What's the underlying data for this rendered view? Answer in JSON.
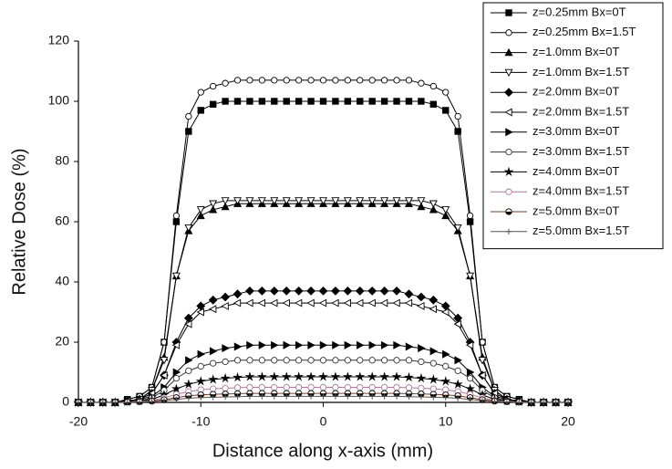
{
  "chart_data": {
    "type": "line",
    "x_label": "Distance along x-axis (mm)",
    "y_label": "Relative Dose (%)",
    "xlim": [
      -20,
      20
    ],
    "xticks": [
      -20,
      -10,
      0,
      10,
      20
    ],
    "ylim": [
      0,
      120
    ],
    "yticks": [
      0,
      20,
      40,
      60,
      80,
      100,
      120
    ],
    "legend": "top-right",
    "x": [
      -20,
      -19,
      -18,
      -17,
      -16,
      -15,
      -14,
      -13,
      -12,
      -11,
      -10,
      -9,
      -8,
      -7,
      -6,
      -5,
      -4,
      -3,
      -2,
      -1,
      0,
      1,
      2,
      3,
      4,
      5,
      6,
      7,
      8,
      9,
      10,
      11,
      12,
      13,
      14,
      15,
      16,
      17,
      18,
      19,
      20
    ],
    "series": [
      {
        "name": "z=0.25mm Bx=0T",
        "color": "#000000",
        "marker": "square",
        "values": [
          0,
          0,
          0,
          0,
          1,
          2,
          5,
          20,
          60,
          90,
          97,
          99,
          100,
          100,
          100,
          100,
          100,
          100,
          100,
          100,
          100,
          100,
          100,
          100,
          100,
          100,
          100,
          100,
          100,
          99,
          97,
          90,
          60,
          20,
          5,
          2,
          1,
          0,
          0,
          0,
          0
        ]
      },
      {
        "name": "z=0.25mm Bx=1.5T",
        "color": "#000000",
        "marker": "circle-open",
        "values": [
          0,
          0,
          0,
          0,
          1,
          2,
          5,
          20,
          62,
          95,
          103,
          105,
          106,
          107,
          107,
          107,
          107,
          107,
          107,
          107,
          107,
          107,
          107,
          107,
          107,
          107,
          107,
          107,
          106,
          105,
          103,
          95,
          62,
          20,
          5,
          2,
          1,
          0,
          0,
          0,
          0
        ]
      },
      {
        "name": "z=1.0mm Bx=0T",
        "color": "#000000",
        "marker": "triangle-up",
        "values": [
          0,
          0,
          0,
          0,
          0.5,
          1,
          4,
          15,
          42,
          57,
          62,
          64,
          65,
          66,
          66,
          66,
          66,
          66,
          66,
          66,
          66,
          66,
          66,
          66,
          66,
          66,
          66,
          66,
          65,
          64,
          62,
          57,
          42,
          15,
          4,
          1,
          0.5,
          0,
          0,
          0,
          0
        ]
      },
      {
        "name": "z=1.0mm Bx=1.5T",
        "color": "#000000",
        "marker": "triangle-down-open",
        "values": [
          0,
          0,
          0,
          0,
          0.5,
          1,
          4,
          14,
          42,
          58,
          64,
          66,
          67,
          67,
          67,
          67,
          67,
          67,
          67,
          67,
          67,
          67,
          67,
          67,
          67,
          67,
          67,
          67,
          67,
          66,
          64,
          58,
          42,
          14,
          4,
          1,
          0.5,
          0,
          0,
          0,
          0
        ]
      },
      {
        "name": "z=2.0mm Bx=0T",
        "color": "#000000",
        "marker": "diamond",
        "values": [
          0,
          0,
          0,
          0,
          0.5,
          1,
          3,
          9,
          20,
          28,
          32,
          34,
          35,
          36,
          37,
          37,
          37,
          37,
          37,
          37,
          37,
          37,
          37,
          37,
          37,
          37,
          37,
          36,
          35,
          34,
          32,
          28,
          20,
          9,
          3,
          1,
          0.5,
          0,
          0,
          0,
          0
        ]
      },
      {
        "name": "z=2.0mm Bx=1.5T",
        "color": "#000000",
        "marker": "triangle-left-open",
        "values": [
          0,
          0,
          0,
          0,
          0.5,
          1,
          3,
          9,
          19,
          26,
          30,
          31,
          32,
          33,
          33,
          33,
          33,
          33,
          33,
          33,
          33,
          33,
          33,
          33,
          33,
          33,
          33,
          33,
          32,
          31,
          30,
          26,
          19,
          9,
          3,
          1,
          0.5,
          0,
          0,
          0,
          0
        ]
      },
      {
        "name": "z=3.0mm Bx=0T",
        "color": "#000000",
        "marker": "triangle-right",
        "values": [
          0,
          0,
          0,
          0,
          0.5,
          1,
          2,
          5,
          10,
          14,
          16,
          17,
          18,
          18.5,
          19,
          19,
          19,
          19,
          19,
          19,
          19,
          19,
          19,
          19,
          19,
          19,
          19,
          18.5,
          18,
          17,
          16,
          14,
          10,
          5,
          2,
          1,
          0.5,
          0,
          0,
          0,
          0
        ]
      },
      {
        "name": "z=3.0mm Bx=1.5T",
        "color": "#333333",
        "marker": "circle-open",
        "values": [
          0,
          0,
          0,
          0,
          0.2,
          0.5,
          1.5,
          4,
          8,
          10.5,
          12,
          13,
          13.5,
          14,
          14,
          14,
          14,
          14,
          14,
          14,
          14,
          14,
          14,
          14,
          14,
          14,
          14,
          14,
          13.5,
          13,
          12,
          10.5,
          8,
          4,
          1.5,
          0.5,
          0.2,
          0,
          0,
          0,
          0
        ]
      },
      {
        "name": "z=4.0mm Bx=0T",
        "color": "#000000",
        "marker": "star",
        "values": [
          0,
          0,
          0,
          0,
          0.2,
          0.5,
          1,
          2.5,
          4.5,
          6,
          7,
          7.6,
          8,
          8.3,
          8.5,
          8.5,
          8.5,
          8.5,
          8.5,
          8.5,
          8.5,
          8.5,
          8.5,
          8.5,
          8.5,
          8.5,
          8.5,
          8.3,
          8,
          7.6,
          7,
          6,
          4.5,
          2.5,
          1,
          0.5,
          0.2,
          0,
          0,
          0,
          0
        ]
      },
      {
        "name": "z=4.0mm Bx=1.5T",
        "color": "#b07898",
        "marker": "circle-open",
        "values": [
          0,
          0,
          0,
          0,
          0.1,
          0.3,
          0.6,
          1.5,
          2.7,
          3.6,
          4.2,
          4.5,
          4.7,
          4.9,
          5,
          5,
          5,
          5,
          5,
          5,
          5,
          5,
          5,
          5,
          5,
          5,
          5,
          4.9,
          4.7,
          4.5,
          4.2,
          3.6,
          2.7,
          1.5,
          0.6,
          0.3,
          0.1,
          0,
          0,
          0,
          0
        ]
      },
      {
        "name": "z=5.0mm Bx=0T",
        "color": "#8b3a1a",
        "marker": "circle-half",
        "values": [
          0,
          0,
          0,
          0,
          0.1,
          0.2,
          0.4,
          0.9,
          1.6,
          2.2,
          2.5,
          2.7,
          2.8,
          2.9,
          3,
          3,
          3,
          3,
          3,
          3,
          3,
          3,
          3,
          3,
          3,
          3,
          3,
          2.9,
          2.8,
          2.7,
          2.5,
          2.2,
          1.6,
          0.9,
          0.4,
          0.2,
          0.1,
          0,
          0,
          0,
          0
        ]
      },
      {
        "name": "z=5.0mm Bx=1.5T",
        "color": "#555555",
        "marker": "plus",
        "values": [
          0,
          0,
          0,
          0,
          0,
          0.1,
          0.3,
          0.6,
          1,
          1.4,
          1.6,
          1.7,
          1.8,
          1.9,
          2,
          2,
          2,
          2,
          2,
          2,
          2,
          2,
          2,
          2,
          2,
          2,
          2,
          1.9,
          1.8,
          1.7,
          1.6,
          1.4,
          1,
          0.6,
          0.3,
          0.1,
          0,
          0,
          0,
          0,
          0
        ]
      }
    ]
  }
}
